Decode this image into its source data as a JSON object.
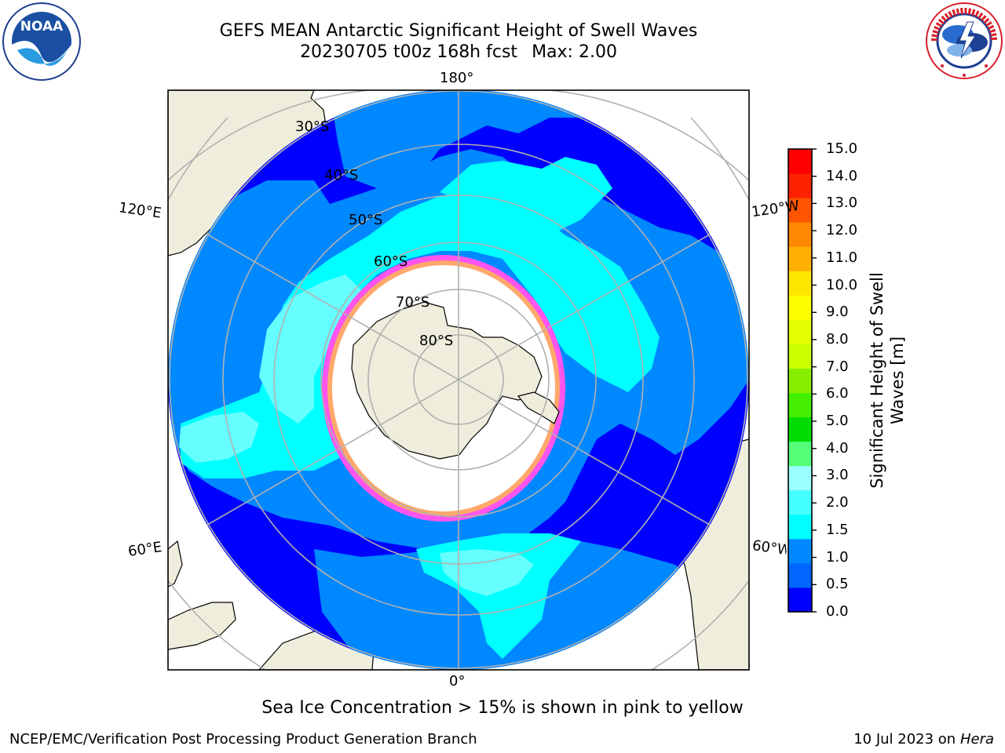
{
  "title": {
    "line1": "GEFS MEAN Antarctic Significant Height of Swell Waves",
    "run": "20230705 t00z 168h fcst",
    "max": "Max: 2.00"
  },
  "map": {
    "projection": "south-polar-stereographic",
    "longitude_labels": {
      "top": "180°",
      "bottom": "0°",
      "upper_left": "120°E",
      "upper_right": "120°W",
      "lower_left": "60°E",
      "lower_right": "60°W"
    },
    "latitude_labels": [
      "30°S",
      "40°S",
      "50°S",
      "60°S",
      "70°S",
      "80°S"
    ],
    "colors": {
      "land": "#efeedc",
      "sea_ice": "#ffffff",
      "ice_edge_pink": "#ff55ee",
      "ice_edge_yellow": "#ffcc33",
      "grid": "#b0b0b0"
    }
  },
  "colorbar": {
    "label": "Significant Height of Swell\nWaves [m]",
    "label_line1": "Significant Height of Swell",
    "label_line2": "Waves [m]",
    "ticks": [
      "15.0",
      "14.0",
      "13.0",
      "12.0",
      "11.0",
      "10.0",
      "9.0",
      "8.0",
      "7.0",
      "6.0",
      "5.0",
      "4.0",
      "3.0",
      "2.0",
      "1.5",
      "1.0",
      "0.5",
      "0.0"
    ],
    "colors_bottom_to_top": [
      "#0000ff",
      "#0066ff",
      "#0088ff",
      "#00ffff",
      "#44ffff",
      "#99ffff",
      "#55ff77",
      "#00dd00",
      "#44ee00",
      "#88ee00",
      "#ccff00",
      "#e6ff00",
      "#ffff00",
      "#ffe600",
      "#ffb000",
      "#ff8800",
      "#ff5500",
      "#ff2200",
      "#ff0000"
    ]
  },
  "note": "Sea Ice Concentration > 15% is shown in pink to yellow",
  "footer": {
    "left": "NCEP/EMC/Verification Post Processing Product Generation Branch",
    "date": "10 Jul 2023 on ",
    "machine": "Hera"
  },
  "logos": {
    "left": "noaa-logo",
    "right": "nws-logo"
  }
}
